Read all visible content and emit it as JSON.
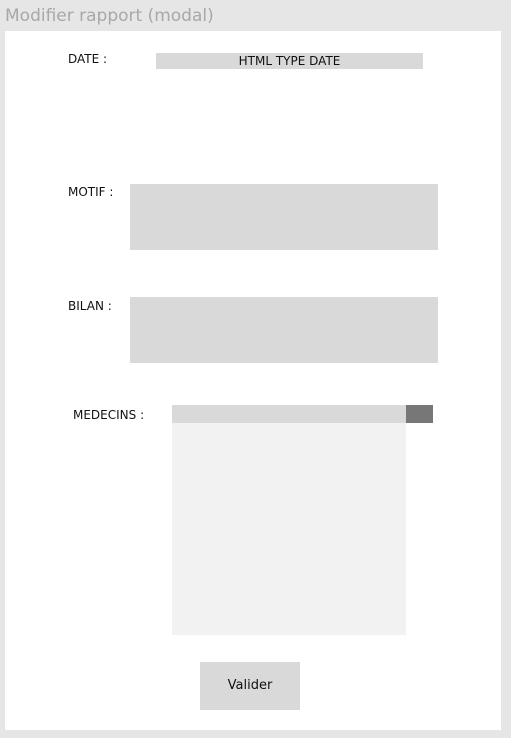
{
  "window": {
    "title": "Modifier rapport (modal)"
  },
  "form": {
    "date_label": "DATE :",
    "date_value": "HTML TYPE DATE",
    "motif_label": "MOTIF :",
    "motif_value": "",
    "bilan_label": "BILAN :",
    "bilan_value": "",
    "medecins_label": "MEDECINS :",
    "medecins_selected": "",
    "submit_label": "Valider"
  },
  "colors": {
    "background": "#e6e6e6",
    "modal_background": "#ffffff",
    "field_background": "#d9d9d9",
    "list_background": "#f2f2f2",
    "toggle_background": "#777777",
    "title_text": "#a8a8a8"
  }
}
